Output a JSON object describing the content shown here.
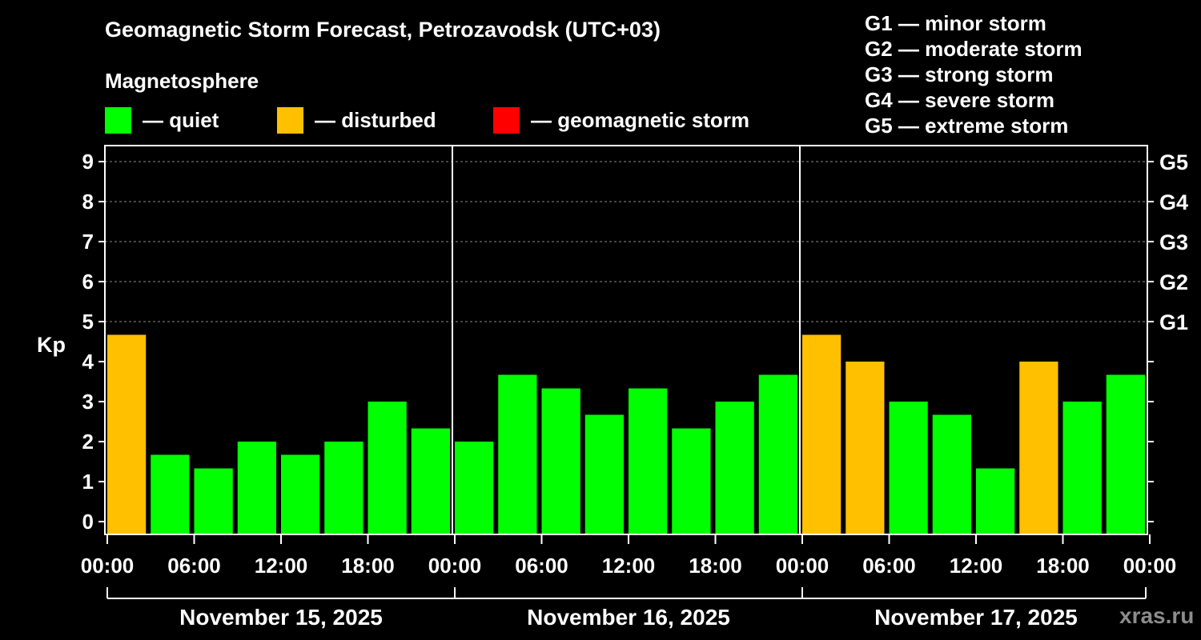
{
  "title": "Geomagnetic Storm Forecast, Petrozavodsk (UTC+03)",
  "legend": {
    "heading": "Magnetosphere",
    "items": [
      {
        "label": "— quiet",
        "color": "#00ff00"
      },
      {
        "label": "— disturbed",
        "color": "#ffc000"
      },
      {
        "label": "— geomagnetic storm",
        "color": "#ff0000"
      }
    ]
  },
  "g_scale": [
    "G1 — minor storm",
    "G2 — moderate storm",
    "G3 — strong storm",
    "G4 — severe storm",
    "G5 — extreme storm"
  ],
  "watermark": "xras.ru",
  "chart_data": {
    "type": "bar",
    "ylabel": "Kp",
    "ylim": [
      0,
      9
    ],
    "y_ticks": [
      "0",
      "1",
      "2",
      "3",
      "4",
      "5",
      "6",
      "7",
      "8",
      "9"
    ],
    "right_axis_labels": [
      {
        "kp": 5,
        "label": "G1"
      },
      {
        "kp": 6,
        "label": "G2"
      },
      {
        "kp": 7,
        "label": "G3"
      },
      {
        "kp": 8,
        "label": "G4"
      },
      {
        "kp": 9,
        "label": "G5"
      }
    ],
    "grid": "dashed horizontal lines at Kp 5–9",
    "x_tick_labels": [
      "00:00",
      "06:00",
      "12:00",
      "18:00",
      "00:00",
      "06:00",
      "12:00",
      "18:00",
      "00:00",
      "06:00",
      "12:00",
      "18:00",
      "00:00"
    ],
    "days": [
      "November 15, 2025",
      "November 16, 2025",
      "November 17, 2025"
    ],
    "interval_hours": 3,
    "values": [
      4.67,
      1.67,
      1.33,
      2.0,
      1.67,
      2.0,
      3.0,
      2.33,
      2.0,
      3.67,
      3.33,
      2.67,
      3.33,
      2.33,
      3.0,
      3.67,
      4.67,
      4.0,
      3.0,
      2.67,
      1.33,
      4.0,
      3.0,
      3.67
    ],
    "levels": [
      "disturbed",
      "quiet",
      "quiet",
      "quiet",
      "quiet",
      "quiet",
      "quiet",
      "quiet",
      "quiet",
      "quiet",
      "quiet",
      "quiet",
      "quiet",
      "quiet",
      "quiet",
      "quiet",
      "disturbed",
      "disturbed",
      "quiet",
      "quiet",
      "quiet",
      "disturbed",
      "quiet",
      "quiet"
    ]
  }
}
